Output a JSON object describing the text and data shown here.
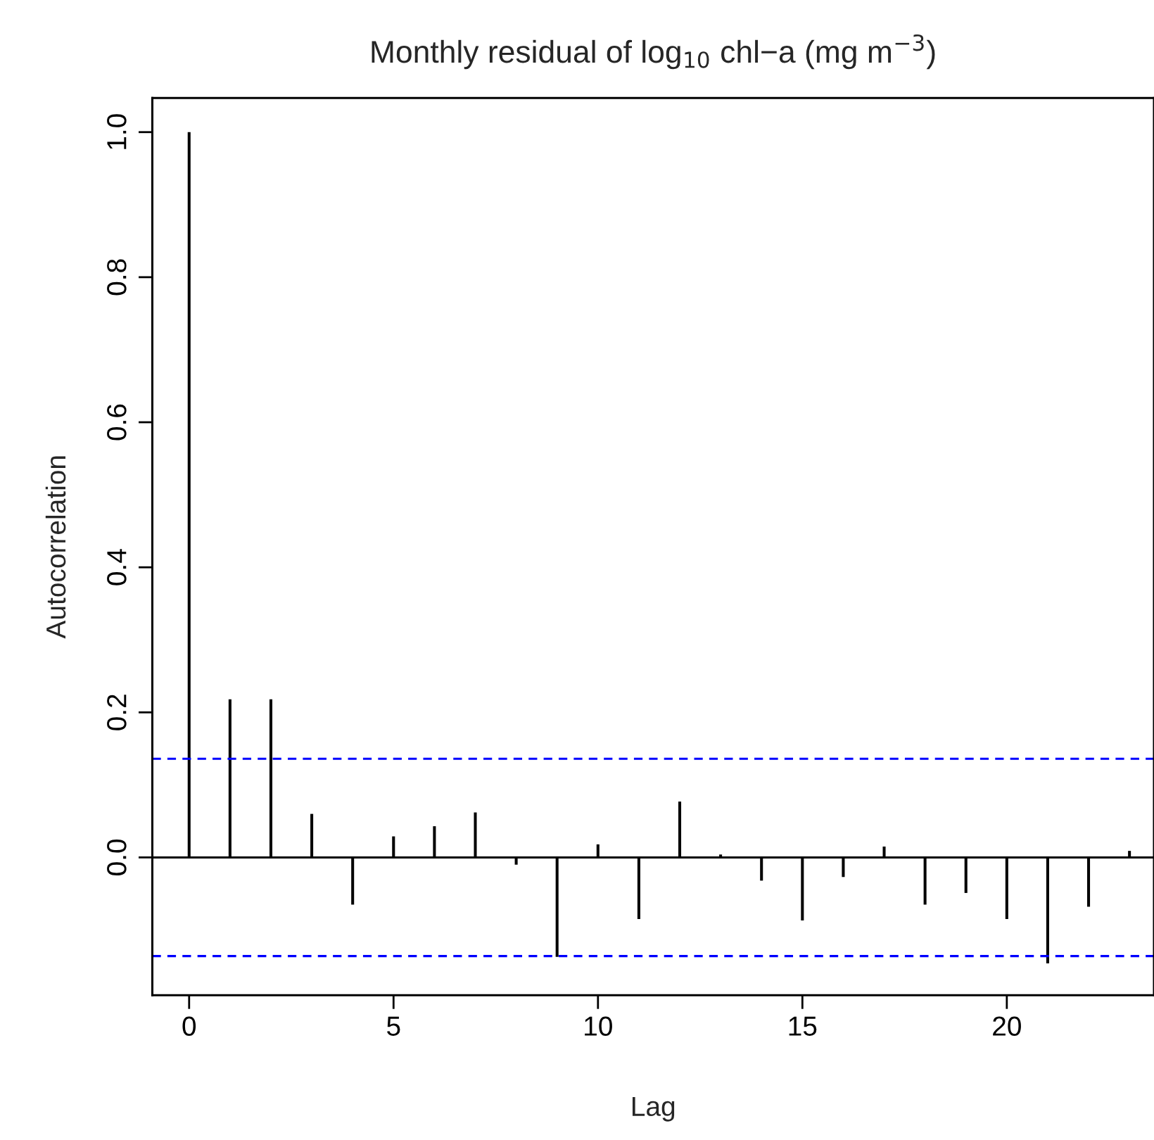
{
  "chart_data": {
    "type": "bar",
    "title": "Monthly residual of log$_{10}$ chl−a (mg m$^{−3}$)",
    "xlabel": "Lag",
    "ylabel": "Autocorrelation",
    "x": [
      0,
      1,
      2,
      3,
      4,
      5,
      6,
      7,
      8,
      9,
      10,
      11,
      12,
      13,
      14,
      15,
      16,
      17,
      18,
      19,
      20,
      21,
      22,
      23
    ],
    "series": [
      {
        "color": "#000000",
        "values": [
          1.0,
          0.218,
          0.218,
          0.06,
          -0.065,
          0.029,
          0.043,
          0.062,
          -0.01,
          -0.137,
          0.018,
          -0.085,
          0.077,
          0.004,
          -0.032,
          -0.087,
          -0.027,
          0.015,
          -0.065,
          -0.049,
          -0.085,
          -0.146,
          -0.068,
          0.009
        ]
      }
    ],
    "ref_lines": [
      {
        "axis": "y",
        "value": 0,
        "color": "#000000",
        "line_style": "solid"
      },
      {
        "axis": "y",
        "value": 0.136,
        "color": "#0000ff",
        "line_style": "dashed"
      },
      {
        "axis": "y",
        "value": -0.136,
        "color": "#0000ff",
        "line_style": "dashed"
      }
    ],
    "xlim": [
      -0.9,
      23.6
    ],
    "ylim": [
      -0.19,
      1.047
    ],
    "xticks": [
      0,
      5,
      10,
      15,
      20
    ],
    "yticks": [
      {
        "value": 0,
        "label": "0.0"
      },
      {
        "value": 0.2,
        "label": "0.2"
      },
      {
        "value": 0.4,
        "label": "0.4"
      },
      {
        "value": 0.6,
        "label": "0.6"
      },
      {
        "value": 0.8,
        "label": "0.8"
      },
      {
        "value": 1.0,
        "label": "1.0"
      }
    ],
    "grid": false,
    "legend": false
  }
}
